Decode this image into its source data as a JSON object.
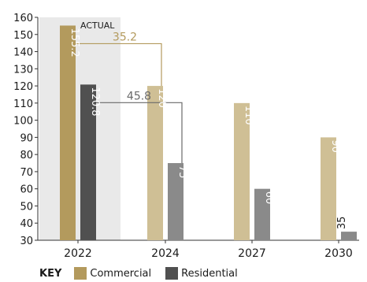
{
  "chart_data": {
    "type": "bar",
    "categories": [
      "2022",
      "2024",
      "2027",
      "2030"
    ],
    "series": [
      {
        "name": "Commercial",
        "values": [
          155.2,
          120,
          110,
          90
        ],
        "labels": [
          "155.2",
          "120",
          "110",
          "90"
        ]
      },
      {
        "name": "Residential",
        "values": [
          120.8,
          75,
          60,
          35
        ],
        "labels": [
          "120.8",
          "75",
          "60",
          "35"
        ]
      }
    ],
    "ylim": [
      30,
      160
    ],
    "yticks": [
      30,
      40,
      50,
      60,
      70,
      80,
      90,
      100,
      110,
      120,
      130,
      140,
      150,
      160
    ],
    "shaded_region_label": "ACTUAL",
    "annotations": [
      {
        "text": "35.2",
        "from": "2022",
        "to": "2024",
        "series": "Commercial"
      },
      {
        "text": "45.8",
        "from": "2022",
        "to": "2024",
        "series": "Residential"
      }
    ],
    "legend": {
      "title": "KEY",
      "position": "bottom-left"
    },
    "colors": {
      "Commercial_actual": "#b39a5d",
      "Commercial": "#cfbf95",
      "Residential_actual": "#505050",
      "Residential": "#8a8a8a",
      "annotation_commercial": "#b39a5d",
      "annotation_residential": "#6a6a6a",
      "shade": "#e9e9e9"
    }
  }
}
